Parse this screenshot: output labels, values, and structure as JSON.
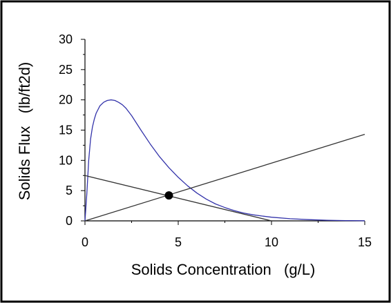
{
  "chart_data": {
    "type": "line",
    "title": "",
    "xlabel": "Solids Concentration   (g/L)",
    "ylabel": "Solids Flux   (lb/ft2d)",
    "xlim": [
      0,
      15
    ],
    "ylim": [
      0,
      30
    ],
    "x_ticks": [
      "0",
      "5",
      "10",
      "15"
    ],
    "y_ticks": [
      "0",
      "5",
      "10",
      "15",
      "20",
      "25",
      "30"
    ],
    "grid": false,
    "legend": "none",
    "series": [
      {
        "color": "#3333aa",
        "x": [
          0,
          0.1,
          0.2,
          0.3,
          0.4,
          0.5,
          0.6,
          0.8,
          1.0,
          1.2,
          1.4,
          1.6,
          1.8,
          2.0,
          2.2,
          2.5,
          3.0,
          3.5,
          4.0,
          4.5,
          5.0,
          5.5,
          6.0,
          6.5,
          7.0,
          7.5,
          8.0,
          8.5,
          9.0,
          9.5,
          10.0,
          11.0,
          12.0,
          13.0,
          14.0,
          15.0
        ],
        "y": [
          0,
          4.5,
          10.0,
          13.5,
          15.5,
          16.8,
          17.8,
          19.0,
          19.6,
          19.9,
          20.0,
          19.9,
          19.6,
          19.2,
          18.6,
          17.4,
          15.0,
          12.7,
          10.6,
          8.8,
          7.2,
          5.8,
          4.6,
          3.6,
          2.8,
          2.2,
          1.7,
          1.3,
          1.0,
          0.8,
          0.6,
          0.35,
          0.2,
          0.1,
          0.05,
          0.02
        ]
      },
      {
        "color": "#333333",
        "x": [
          0,
          15
        ],
        "y": [
          0,
          14.3
        ]
      },
      {
        "color": "#333333",
        "x": [
          0,
          10
        ],
        "y": [
          7.5,
          0
        ]
      }
    ],
    "points": [
      {
        "x": 4.5,
        "y": 4.2,
        "color": "#000000"
      }
    ]
  }
}
